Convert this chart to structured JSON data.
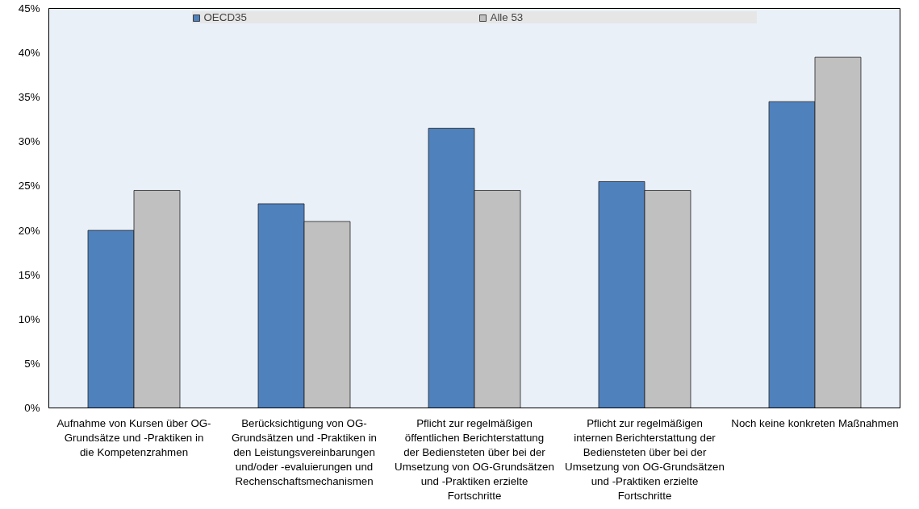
{
  "chart_data": {
    "type": "bar",
    "categories": [
      "Aufnahme von Kursen über OG-Grundsätze und -Praktiken in die Kompetenzrahmen",
      "Berücksichtigung von OG-Grundsätzen und -Praktiken in den Leistungsvereinbarungen und/oder -evaluierungen und Rechenschaftsmechanismen",
      "Pflicht zur regelmäßigen öffentlichen Berichterstattung der Bediensteten über bei der Umsetzung von OG-Grundsätzen und -Praktiken erzielte Fortschritte",
      "Pflicht zur regelmäßigen internen Berichterstattung der Bediensteten über bei der Umsetzung von OG-Grundsätzen und -Praktiken erzielte Fortschritte",
      "Noch keine konkreten Maßnahmen"
    ],
    "series": [
      {
        "name": "OECD35",
        "color": "#4f81bd",
        "values": [
          20,
          23,
          31.5,
          25.5,
          34.5
        ]
      },
      {
        "name": "Alle 53",
        "color": "#c0c0c0",
        "values": [
          24.5,
          21,
          24.5,
          24.5,
          39.5
        ]
      }
    ],
    "ylim": [
      0,
      45
    ],
    "yticks": [
      {
        "value": 0,
        "label": "0%"
      },
      {
        "value": 5,
        "label": "5%"
      },
      {
        "value": 10,
        "label": "10%"
      },
      {
        "value": 15,
        "label": "15%"
      },
      {
        "value": 20,
        "label": "20%"
      },
      {
        "value": 25,
        "label": "25%"
      },
      {
        "value": 30,
        "label": "30%"
      },
      {
        "value": 35,
        "label": "35%"
      },
      {
        "value": 40,
        "label": "40%"
      },
      {
        "value": 45,
        "label": "45%"
      }
    ],
    "legend": "top"
  }
}
